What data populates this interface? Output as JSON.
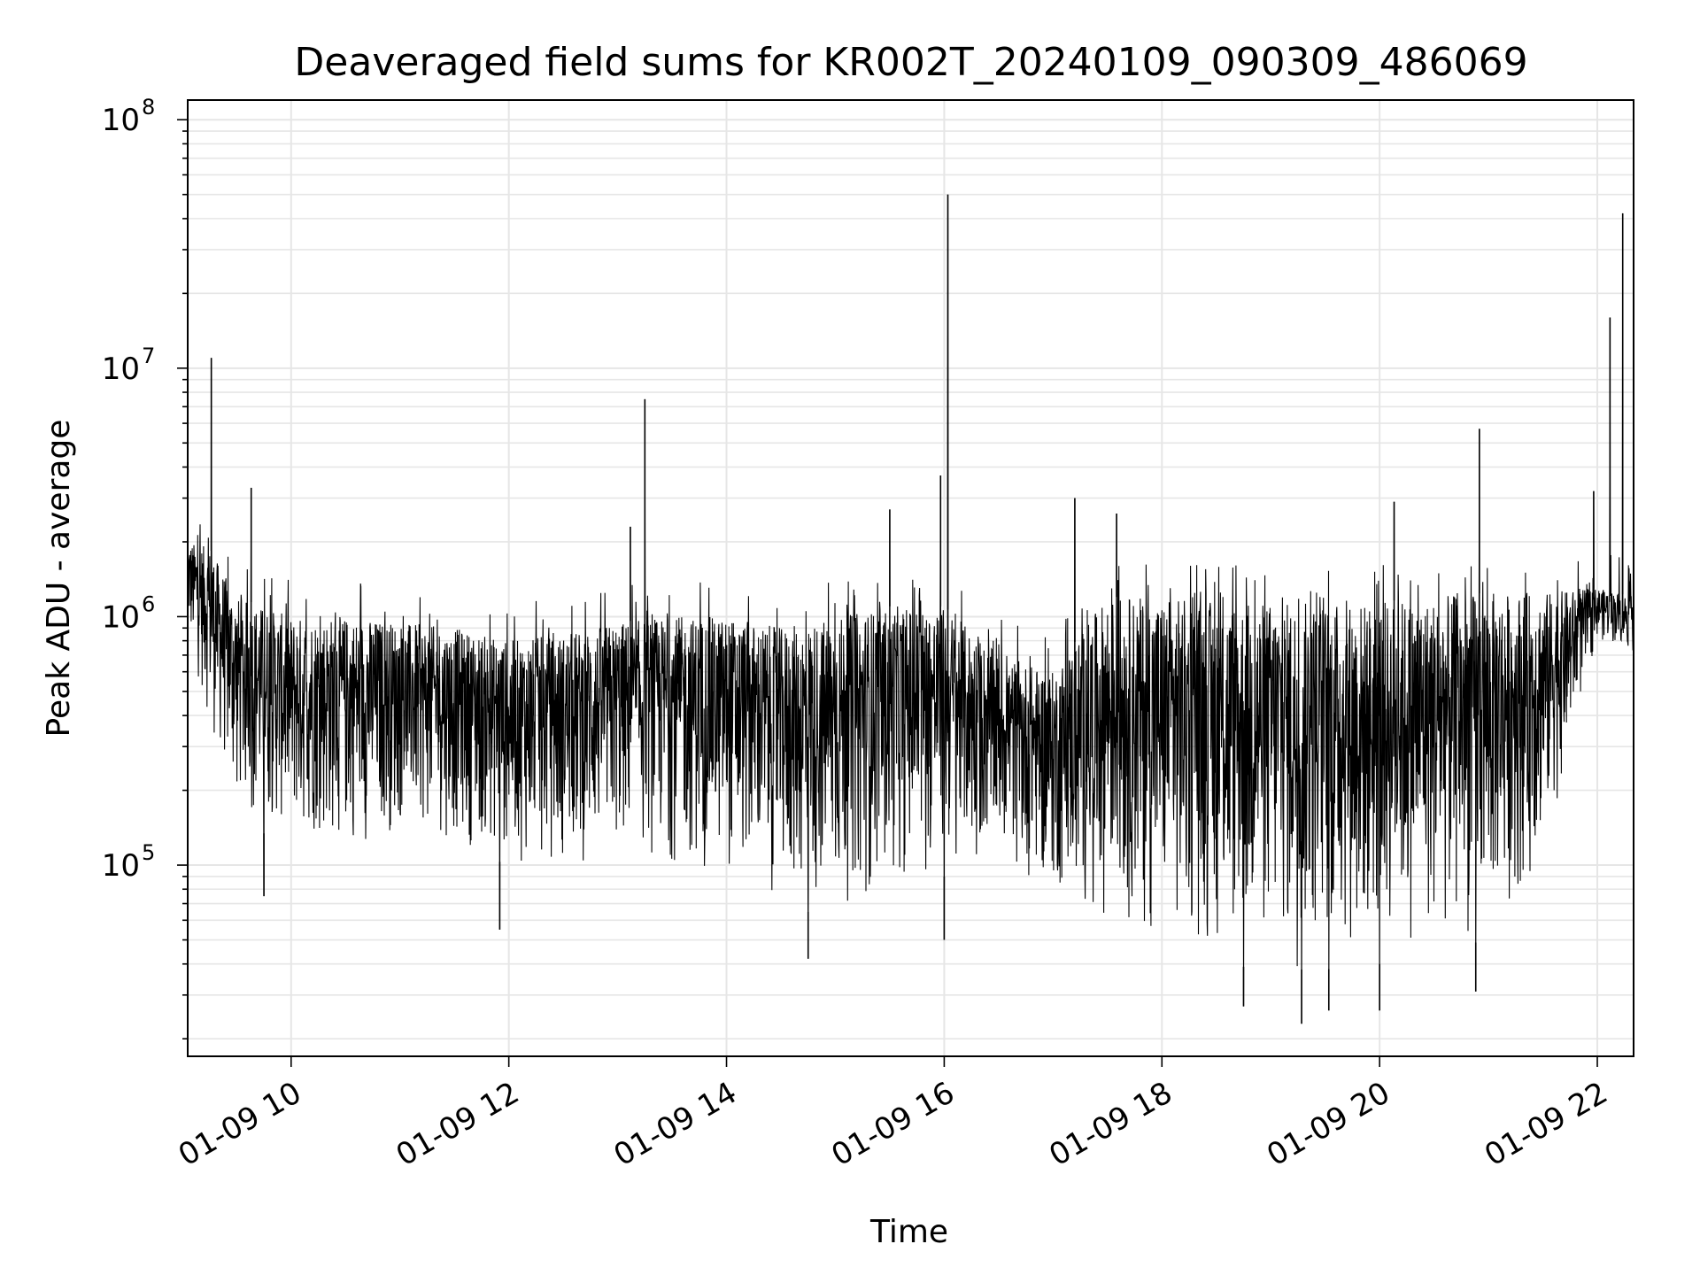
{
  "chart_data": {
    "type": "line",
    "title": "Deaveraged field sums for KR002T_20240109_090309_486069",
    "xlabel": "Time",
    "ylabel": "Peak ADU - average",
    "x_scale": "time",
    "y_scale": "log",
    "xlim": [
      "2024-01-09 09:03",
      "2024-01-09 22:20"
    ],
    "ylim": [
      17000,
      120000000
    ],
    "grid": true,
    "legend": "none",
    "line_color": "#000000",
    "grid_color": "#e6e6e6",
    "x_ticks": [
      {
        "value": "2024-01-09 10:00",
        "label": "01-09 10"
      },
      {
        "value": "2024-01-09 12:00",
        "label": "01-09 12"
      },
      {
        "value": "2024-01-09 14:00",
        "label": "01-09 14"
      },
      {
        "value": "2024-01-09 16:00",
        "label": "01-09 16"
      },
      {
        "value": "2024-01-09 18:00",
        "label": "01-09 18"
      },
      {
        "value": "2024-01-09 20:00",
        "label": "01-09 20"
      },
      {
        "value": "2024-01-09 22:00",
        "label": "01-09 22"
      }
    ],
    "y_ticks": [
      {
        "value": 100000,
        "base": "10",
        "exp": "5"
      },
      {
        "value": 1000000,
        "base": "10",
        "exp": "6"
      },
      {
        "value": 10000000,
        "base": "10",
        "exp": "7"
      },
      {
        "value": 100000000,
        "base": "10",
        "exp": "8"
      }
    ],
    "envelope": [
      {
        "t": "2024-01-09 09:03",
        "high": 2000000,
        "low": 800000
      },
      {
        "t": "2024-01-09 09:15",
        "high": 1900000,
        "low": 350000
      },
      {
        "t": "2024-01-09 09:30",
        "high": 1200000,
        "low": 150000
      },
      {
        "t": "2024-01-09 10:00",
        "high": 1000000,
        "low": 120000
      },
      {
        "t": "2024-01-09 10:30",
        "high": 1000000,
        "low": 110000
      },
      {
        "t": "2024-01-09 11:00",
        "high": 950000,
        "low": 130000
      },
      {
        "t": "2024-01-09 11:30",
        "high": 900000,
        "low": 120000
      },
      {
        "t": "2024-01-09 12:00",
        "high": 800000,
        "low": 100000
      },
      {
        "t": "2024-01-09 12:30",
        "high": 850000,
        "low": 90000
      },
      {
        "t": "2024-01-09 13:00",
        "high": 950000,
        "low": 100000
      },
      {
        "t": "2024-01-09 13:30",
        "high": 1000000,
        "low": 95000
      },
      {
        "t": "2024-01-09 14:00",
        "high": 1000000,
        "low": 90000
      },
      {
        "t": "2024-01-09 14:30",
        "high": 900000,
        "low": 70000
      },
      {
        "t": "2024-01-09 15:00",
        "high": 1000000,
        "low": 60000
      },
      {
        "t": "2024-01-09 15:30",
        "high": 1100000,
        "low": 80000
      },
      {
        "t": "2024-01-09 16:00",
        "high": 1100000,
        "low": 90000
      },
      {
        "t": "2024-01-09 16:30",
        "high": 700000,
        "low": 100000
      },
      {
        "t": "2024-01-09 17:00",
        "high": 600000,
        "low": 70000
      },
      {
        "t": "2024-01-09 17:30",
        "high": 1200000,
        "low": 60000
      },
      {
        "t": "2024-01-09 18:00",
        "high": 1200000,
        "low": 45000
      },
      {
        "t": "2024-01-09 18:30",
        "high": 1150000,
        "low": 40000
      },
      {
        "t": "2024-01-09 19:00",
        "high": 1150000,
        "low": 38000
      },
      {
        "t": "2024-01-09 19:30",
        "high": 1150000,
        "low": 38000
      },
      {
        "t": "2024-01-09 20:00",
        "high": 1150000,
        "low": 40000
      },
      {
        "t": "2024-01-09 20:30",
        "high": 1200000,
        "low": 45000
      },
      {
        "t": "2024-01-09 21:00",
        "high": 1250000,
        "low": 50000
      },
      {
        "t": "2024-01-09 21:30",
        "high": 1250000,
        "low": 100000
      },
      {
        "t": "2024-01-09 22:00",
        "high": 1300000,
        "low": 800000
      },
      {
        "t": "2024-01-09 22:20",
        "high": 1200000,
        "low": 700000
      }
    ],
    "spikes": [
      {
        "t": "2024-01-09 09:16",
        "value": 11000000
      },
      {
        "t": "2024-01-09 09:38",
        "value": 3300000
      },
      {
        "t": "2024-01-09 13:15",
        "value": 7500000
      },
      {
        "t": "2024-01-09 13:07",
        "value": 2300000
      },
      {
        "t": "2024-01-09 15:30",
        "value": 2700000
      },
      {
        "t": "2024-01-09 15:58",
        "value": 3700000
      },
      {
        "t": "2024-01-09 16:02",
        "value": 50000000
      },
      {
        "t": "2024-01-09 17:12",
        "value": 3000000
      },
      {
        "t": "2024-01-09 17:35",
        "value": 2600000
      },
      {
        "t": "2024-01-09 20:08",
        "value": 2900000
      },
      {
        "t": "2024-01-09 20:55",
        "value": 5700000
      },
      {
        "t": "2024-01-09 21:58",
        "value": 3200000
      },
      {
        "t": "2024-01-09 22:07",
        "value": 16000000
      },
      {
        "t": "2024-01-09 22:14",
        "value": 42000000
      }
    ],
    "dips": [
      {
        "t": "2024-01-09 09:45",
        "value": 75000
      },
      {
        "t": "2024-01-09 11:55",
        "value": 55000
      },
      {
        "t": "2024-01-09 14:45",
        "value": 42000
      },
      {
        "t": "2024-01-09 16:00",
        "value": 50000
      },
      {
        "t": "2024-01-09 18:45",
        "value": 27000
      },
      {
        "t": "2024-01-09 19:17",
        "value": 23000
      },
      {
        "t": "2024-01-09 19:32",
        "value": 26000
      },
      {
        "t": "2024-01-09 20:00",
        "value": 26000
      },
      {
        "t": "2024-01-09 20:53",
        "value": 31000
      }
    ]
  }
}
